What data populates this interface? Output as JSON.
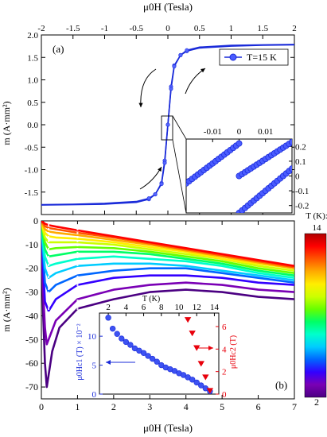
{
  "chart_data": [
    {
      "panel_label": "(a)",
      "type": "line",
      "xlabel": "μ0H (Tesla)",
      "ylabel": "m (A·mm²)",
      "xlim": [
        -2,
        2
      ],
      "ylim": [
        -2.0,
        2.0
      ],
      "x_ticks": [
        "-2",
        "-1.5",
        "-1",
        "-0.5",
        "0",
        "0.5",
        "1",
        "1.5",
        "2"
      ],
      "y_ticks": [
        "2.0",
        "1.5",
        "1.0",
        "0.5",
        "0.0",
        "-0.5",
        "-1.0",
        "-1.5"
      ],
      "series": [
        {
          "name": "T=15 K",
          "color": "#1a2bd9",
          "branch_up": [
            [
              -2,
              -1.79
            ],
            [
              -1.5,
              -1.78
            ],
            [
              -1,
              -1.77
            ],
            [
              -0.5,
              -1.73
            ],
            [
              -0.3,
              -1.66
            ],
            [
              -0.2,
              -1.55
            ],
            [
              -0.1,
              -1.3
            ],
            [
              -0.05,
              -0.8
            ],
            [
              0,
              0
            ],
            [
              0.05,
              0.85
            ],
            [
              0.1,
              1.32
            ],
            [
              0.2,
              1.55
            ],
            [
              0.3,
              1.64
            ],
            [
              0.5,
              1.71
            ],
            [
              1,
              1.75
            ],
            [
              1.5,
              1.77
            ],
            [
              2,
              1.78
            ]
          ],
          "branch_down": [
            [
              2,
              1.79
            ],
            [
              1.5,
              1.78
            ],
            [
              1,
              1.77
            ],
            [
              0.5,
              1.73
            ],
            [
              0.3,
              1.66
            ],
            [
              0.2,
              1.55
            ],
            [
              0.1,
              1.3
            ],
            [
              0.05,
              0.8
            ],
            [
              0,
              0
            ],
            [
              -0.05,
              -0.85
            ],
            [
              -0.1,
              -1.32
            ],
            [
              -0.2,
              -1.55
            ],
            [
              -0.3,
              -1.64
            ],
            [
              -0.5,
              -1.71
            ],
            [
              -1,
              -1.75
            ],
            [
              -1.5,
              -1.77
            ],
            [
              -2,
              -1.78
            ]
          ]
        }
      ],
      "legend": "top-right",
      "inset": {
        "xlim": [
          -0.02,
          0.02
        ],
        "ylim": [
          -0.25,
          0.25
        ],
        "x_ticks": [
          "-0.01",
          "0",
          "0.01"
        ],
        "y_ticks": [
          "0.2",
          "0.1",
          "0",
          "-0.1",
          "-0.2"
        ],
        "segments": [
          [
            [
              -0.02,
              -0.05
            ],
            [
              0,
              0.22
            ]
          ],
          [
            [
              0,
              0.0
            ],
            [
              0.02,
              0.23
            ]
          ],
          [
            [
              0,
              -0.25
            ],
            [
              0.02,
              0.05
            ]
          ]
        ]
      }
    },
    {
      "panel_label": "(b)",
      "type": "line",
      "xlabel": "μ0H (Tesla)",
      "ylabel": "m (A·mm²)",
      "xlim": [
        0,
        7
      ],
      "ylim": [
        -75,
        0
      ],
      "x_ticks": [
        "0",
        "1",
        "2",
        "3",
        "4",
        "5",
        "6",
        "7"
      ],
      "y_ticks": [
        "0",
        "-10",
        "-20",
        "-30",
        "-40",
        "-50",
        "-60",
        "-70"
      ],
      "colorbar": {
        "label": "T (K):",
        "min_label": "2",
        "max_label": "14",
        "colors": [
          "#4b0082",
          "#7a00b5",
          "#3300ff",
          "#0066ff",
          "#00ccff",
          "#00ffcc",
          "#00ff66",
          "#66ff00",
          "#ccff00",
          "#ffee00",
          "#ffaa00",
          "#ff5500",
          "#ff0000",
          "#b00000"
        ]
      },
      "curves": [
        {
          "T": 2,
          "points": [
            [
              0,
              0
            ],
            [
              0.05,
              -40
            ],
            [
              0.1,
              -60
            ],
            [
              0.15,
              -70
            ],
            [
              0.2,
              -65
            ],
            [
              0.3,
              -55
            ],
            [
              0.5,
              -45
            ],
            [
              1,
              -37
            ],
            [
              2,
              -33
            ],
            [
              3,
              -30
            ],
            [
              4,
              -29
            ],
            [
              5,
              -30
            ],
            [
              6,
              -32
            ],
            [
              7,
              -33
            ]
          ]
        },
        {
          "T": 3,
          "points": [
            [
              0,
              0
            ],
            [
              0.05,
              -30
            ],
            [
              0.1,
              -45
            ],
            [
              0.15,
              -52
            ],
            [
              0.2,
              -50
            ],
            [
              0.4,
              -42
            ],
            [
              1,
              -33
            ],
            [
              2,
              -29
            ],
            [
              3,
              -27
            ],
            [
              4,
              -26
            ],
            [
              5,
              -27
            ],
            [
              6,
              -29
            ],
            [
              7,
              -30
            ]
          ]
        },
        {
          "T": 4,
          "points": [
            [
              0,
              0
            ],
            [
              0.05,
              -20
            ],
            [
              0.1,
              -34
            ],
            [
              0.2,
              -38
            ],
            [
              0.4,
              -33
            ],
            [
              1,
              -27
            ],
            [
              2,
              -24
            ],
            [
              3,
              -23
            ],
            [
              4,
              -23
            ],
            [
              5,
              -24
            ],
            [
              6,
              -26
            ],
            [
              7,
              -27
            ]
          ]
        },
        {
          "T": 5,
          "points": [
            [
              0,
              0
            ],
            [
              0.05,
              -15
            ],
            [
              0.1,
              -26
            ],
            [
              0.2,
              -30
            ],
            [
              0.4,
              -27
            ],
            [
              1,
              -23
            ],
            [
              2,
              -21
            ],
            [
              3,
              -20
            ],
            [
              4,
              -20
            ],
            [
              5,
              -22
            ],
            [
              6,
              -24
            ],
            [
              7,
              -26
            ]
          ]
        },
        {
          "T": 6,
          "points": [
            [
              0,
              0
            ],
            [
              0.05,
              -12
            ],
            [
              0.1,
              -20
            ],
            [
              0.2,
              -24
            ],
            [
              0.4,
              -22
            ],
            [
              1,
              -19
            ],
            [
              2,
              -18
            ],
            [
              3,
              -18
            ],
            [
              4,
              -19
            ],
            [
              5,
              -21
            ],
            [
              6,
              -23
            ],
            [
              7,
              -25
            ]
          ]
        },
        {
          "T": 7,
          "points": [
            [
              0,
              0
            ],
            [
              0.05,
              -9
            ],
            [
              0.1,
              -15
            ],
            [
              0.2,
              -19
            ],
            [
              0.4,
              -18
            ],
            [
              1,
              -16
            ],
            [
              2,
              -15
            ],
            [
              3,
              -16
            ],
            [
              4,
              -17
            ],
            [
              5,
              -19
            ],
            [
              6,
              -22
            ],
            [
              7,
              -24
            ]
          ]
        },
        {
          "T": 8,
          "points": [
            [
              0,
              0
            ],
            [
              0.05,
              -7
            ],
            [
              0.1,
              -12
            ],
            [
              0.2,
              -15
            ],
            [
              0.4,
              -14.5
            ],
            [
              1,
              -13
            ],
            [
              2,
              -13
            ],
            [
              3,
              -14
            ],
            [
              4,
              -16
            ],
            [
              5,
              -18
            ],
            [
              6,
              -21
            ],
            [
              7,
              -23
            ]
          ]
        },
        {
          "T": 9,
          "points": [
            [
              0,
              0
            ],
            [
              0.05,
              -5
            ],
            [
              0.1,
              -9
            ],
            [
              0.2,
              -12
            ],
            [
              0.4,
              -11.5
            ],
            [
              1,
              -11
            ],
            [
              2,
              -11.5
            ],
            [
              3,
              -13
            ],
            [
              4,
              -15
            ],
            [
              5,
              -17
            ],
            [
              6,
              -20
            ],
            [
              7,
              -22
            ]
          ]
        },
        {
          "T": 10,
          "points": [
            [
              0,
              0
            ],
            [
              0.05,
              -4
            ],
            [
              0.1,
              -7
            ],
            [
              0.2,
              -9
            ],
            [
              0.4,
              -9
            ],
            [
              1,
              -9
            ],
            [
              2,
              -10
            ],
            [
              3,
              -12
            ],
            [
              4,
              -14
            ],
            [
              5,
              -16
            ],
            [
              6,
              -19
            ],
            [
              7,
              -21
            ]
          ]
        },
        {
          "T": 11,
          "points": [
            [
              0,
              0
            ],
            [
              0.05,
              -3
            ],
            [
              0.1,
              -5
            ],
            [
              0.2,
              -6.5
            ],
            [
              0.4,
              -7
            ],
            [
              1,
              -7.5
            ],
            [
              2,
              -9
            ],
            [
              3,
              -11
            ],
            [
              4,
              -13
            ],
            [
              5,
              -16
            ],
            [
              6,
              -18
            ],
            [
              7,
              -20
            ]
          ]
        },
        {
          "T": 12,
          "points": [
            [
              0,
              0
            ],
            [
              0.05,
              -2
            ],
            [
              0.1,
              -3.5
            ],
            [
              0.2,
              -4.5
            ],
            [
              0.4,
              -5
            ],
            [
              1,
              -6
            ],
            [
              2,
              -8
            ],
            [
              3,
              -10
            ],
            [
              4,
              -12.5
            ],
            [
              5,
              -15
            ],
            [
              6,
              -17.5
            ],
            [
              7,
              -20
            ]
          ]
        },
        {
          "T": 13,
          "points": [
            [
              0,
              0
            ],
            [
              0.05,
              -1.2
            ],
            [
              0.1,
              -2.2
            ],
            [
              0.2,
              -3
            ],
            [
              0.4,
              -3.5
            ],
            [
              1,
              -5
            ],
            [
              2,
              -7
            ],
            [
              3,
              -9.5
            ],
            [
              4,
              -12
            ],
            [
              5,
              -14.5
            ],
            [
              6,
              -17
            ],
            [
              7,
              -19.5
            ]
          ]
        },
        {
          "T": 14,
          "points": [
            [
              0,
              0
            ],
            [
              0.05,
              -0.6
            ],
            [
              0.1,
              -1.2
            ],
            [
              0.2,
              -1.8
            ],
            [
              0.4,
              -2.4
            ],
            [
              1,
              -4
            ],
            [
              2,
              -6.5
            ],
            [
              3,
              -9
            ],
            [
              4,
              -11.5
            ],
            [
              5,
              -14
            ],
            [
              6,
              -16.5
            ],
            [
              7,
              -19
            ]
          ]
        }
      ],
      "inset": {
        "type": "scatter",
        "xlabel": "T (K)",
        "ylabel_left": "μ0Hc1 (T) × 10⁻²",
        "ylabel_right": "μ0Hc2 (T)",
        "xlim": [
          1,
          14.5
        ],
        "ylim_left": [
          0,
          14
        ],
        "ylim_right": [
          0,
          7.2
        ],
        "x_ticks": [
          "2",
          "4",
          "6",
          "8",
          "10",
          "12",
          "14"
        ],
        "y_ticks_left": [
          "0",
          "5",
          "10"
        ],
        "y_ticks_right": [
          "0",
          "2",
          "4",
          "6"
        ],
        "series": [
          {
            "name": "μ0Hc1",
            "color": "#1a2bd9",
            "marker": "circle",
            "x": [
              2,
              2.5,
              3,
              3.5,
              4,
              4.5,
              5,
              5.5,
              6,
              6.5,
              7,
              7.5,
              8,
              8.5,
              9,
              9.5,
              10,
              10.5,
              11,
              11.5,
              12,
              12.5,
              13,
              13.5
            ],
            "y": [
              13.2,
              11.3,
              10.4,
              9.6,
              9.0,
              8.5,
              7.9,
              7.5,
              7.1,
              6.6,
              6.1,
              5.6,
              5.0,
              4.6,
              4.3,
              4.0,
              3.6,
              3.3,
              2.9,
              2.5,
              2.0,
              1.5,
              1.0,
              0.5
            ]
          },
          {
            "name": "μ0Hc2",
            "color": "#e8000b",
            "marker": "triangle-down",
            "x": [
              11,
              11.5,
              12,
              12.5,
              13,
              13.5
            ],
            "y": [
              6.6,
              5.4,
              4.1,
              2.7,
              1.5,
              0.3
            ]
          }
        ]
      }
    }
  ]
}
